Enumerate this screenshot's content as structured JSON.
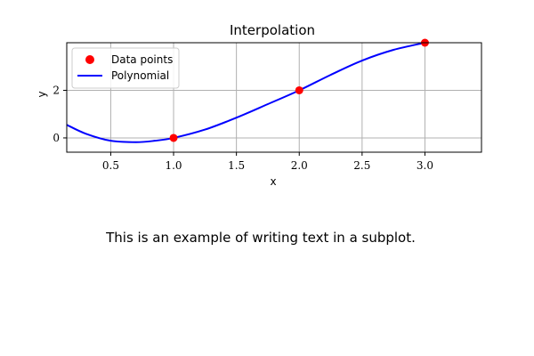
{
  "chart_data": {
    "type": "scatter",
    "title": "Interpolation",
    "xlabel": "x",
    "ylabel": "y",
    "xlim": [
      0.15,
      3.45
    ],
    "ylim": [
      -0.6,
      4.0
    ],
    "xticks": [
      0.5,
      1.0,
      1.5,
      2.0,
      2.5,
      3.0
    ],
    "xtick_labels": [
      "0.5",
      "1.0",
      "1.5",
      "2.0",
      "2.5",
      "3.0"
    ],
    "yticks": [
      0,
      2
    ],
    "ytick_labels": [
      "0",
      "2"
    ],
    "grid": true,
    "legend_placement": "upper-left",
    "series": [
      {
        "name": "Data points",
        "kind": "scatter",
        "color": "#ff0000",
        "x": [
          1.0,
          2.0,
          3.0
        ],
        "y": [
          0.0,
          2.0,
          4.0
        ]
      },
      {
        "name": "Polynomial",
        "kind": "line",
        "color": "#0000ff",
        "x": [
          0.15,
          0.3,
          0.5,
          0.7,
          0.85,
          1.0,
          1.25,
          1.5,
          1.75,
          2.0,
          2.25,
          2.5,
          2.75,
          3.0
        ],
        "y": [
          0.55,
          0.18,
          -0.12,
          -0.18,
          -0.12,
          0.0,
          0.35,
          0.85,
          1.42,
          2.0,
          2.65,
          3.25,
          3.7,
          4.0
        ]
      }
    ]
  },
  "caption": "This is an example of writing text in a subplot."
}
